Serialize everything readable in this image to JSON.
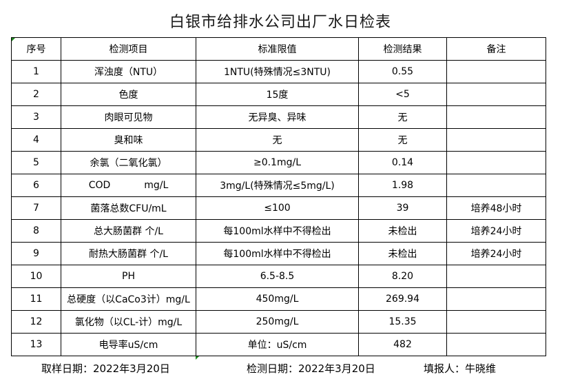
{
  "title": "白银市给排水公司出厂水日检表",
  "table": {
    "headers": [
      "序号",
      "检测项目",
      "标准限值",
      "检测结果",
      "备注"
    ],
    "rows": [
      [
        "1",
        "浑浊度（NTU）",
        "1NTU(特殊情况≤3NTU)",
        "0.55",
        ""
      ],
      [
        "2",
        "色度",
        "15度",
        "<5",
        ""
      ],
      [
        "3",
        "肉眼可见物",
        "无异臭、异味",
        "无",
        ""
      ],
      [
        "4",
        "臭和味",
        "无",
        "无",
        ""
      ],
      [
        "5",
        "余氯（二氧化氯）",
        "≥0.1mg/L",
        "0.14",
        ""
      ],
      [
        "6",
        "COD           mg/L",
        "3mg/L(特殊情况≤5mg/L)",
        "1.98",
        ""
      ],
      [
        "7",
        "菌落总数CFU/mL",
        "≤100",
        "39",
        "培养48小时"
      ],
      [
        "8",
        "总大肠菌群 个/L",
        "每100ml水样中不得检出",
        "未检出",
        "培养24小时"
      ],
      [
        "9",
        "耐热大肠菌群 个/L",
        "每100ml水样中不得检出",
        "未检出",
        "培养24小时"
      ],
      [
        "10",
        "PH",
        "6.5-8.5",
        "8.20",
        ""
      ],
      [
        "11",
        "总硬度（以CaCo3计）mg/L",
        "450mg/L",
        "269.94",
        ""
      ],
      [
        "12",
        "氯化物（以CL-计）mg/L",
        "250mg/L",
        "15.35",
        ""
      ],
      [
        "13",
        "电导率uS/cm",
        "单位：uS/cm",
        "482",
        ""
      ]
    ]
  },
  "footer": {
    "sample_date": "取样日期：2022年3月20日",
    "test_date": "检测日期：2022年3月20日",
    "reporter": "填报人：牛晓维"
  }
}
